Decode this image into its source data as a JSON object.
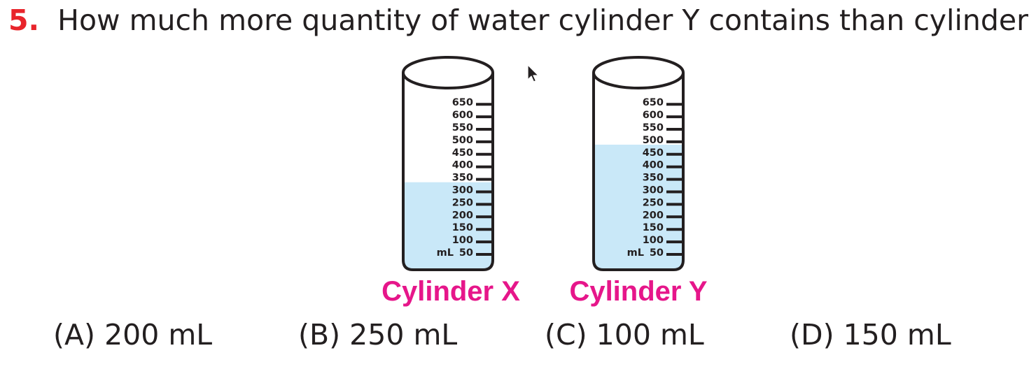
{
  "question": {
    "number": "5.",
    "text": "How much more quantity of water cylinder Y contains than cylinder X?"
  },
  "scale": {
    "unit": "mL",
    "ticks": [
      "650",
      "600",
      "550",
      "500",
      "450",
      "400",
      "350",
      "300",
      "250",
      "200",
      "150",
      "100",
      "50"
    ]
  },
  "cylinders": [
    {
      "name": "Cylinder X",
      "water_level_ml": 330
    },
    {
      "name": "Cylinder Y",
      "water_level_ml": 480
    }
  ],
  "options": [
    {
      "label": "(A) 200 mL"
    },
    {
      "label": "(B) 250 mL"
    },
    {
      "label": "(C) 100 mL"
    },
    {
      "label": "(D) 150 mL"
    }
  ],
  "colors": {
    "question_number": "#e8242b",
    "cylinder_label": "#e6168a",
    "water": "#c9e8f8",
    "outline": "#231f20"
  }
}
